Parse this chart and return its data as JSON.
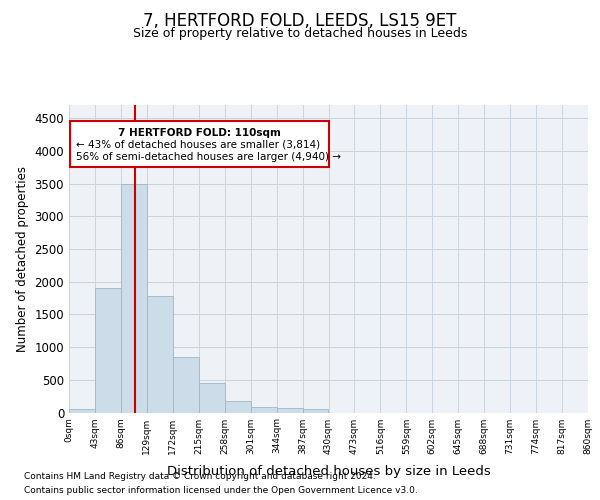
{
  "title": "7, HERTFORD FOLD, LEEDS, LS15 9ET",
  "subtitle": "Size of property relative to detached houses in Leeds",
  "xlabel": "Distribution of detached houses by size in Leeds",
  "ylabel": "Number of detached properties",
  "footer_line1": "Contains HM Land Registry data © Crown copyright and database right 2024.",
  "footer_line2": "Contains public sector information licensed under the Open Government Licence v3.0.",
  "property_line": 110,
  "property_label": "7 HERTFORD FOLD: 110sqm",
  "annotation_line1": "← 43% of detached houses are smaller (3,814)",
  "annotation_line2": "56% of semi-detached houses are larger (4,940) →",
  "bar_edges": [
    0,
    43,
    86,
    129,
    172,
    215,
    258,
    301,
    344,
    387,
    430,
    473,
    516,
    559,
    602,
    645,
    688,
    731,
    774,
    817,
    860
  ],
  "bar_heights": [
    50,
    1900,
    3500,
    1780,
    850,
    450,
    175,
    90,
    65,
    50,
    0,
    0,
    0,
    0,
    0,
    0,
    0,
    0,
    0,
    0
  ],
  "bar_color": "#ccdce8",
  "bar_edge_color": "#9bb8cc",
  "vline_color": "#cc0000",
  "annotation_box_color": "#cc0000",
  "grid_color": "#c8d4de",
  "ylim": [
    0,
    4700
  ],
  "yticks": [
    0,
    500,
    1000,
    1500,
    2000,
    2500,
    3000,
    3500,
    4000,
    4500
  ],
  "bg_color": "#eef2f6"
}
